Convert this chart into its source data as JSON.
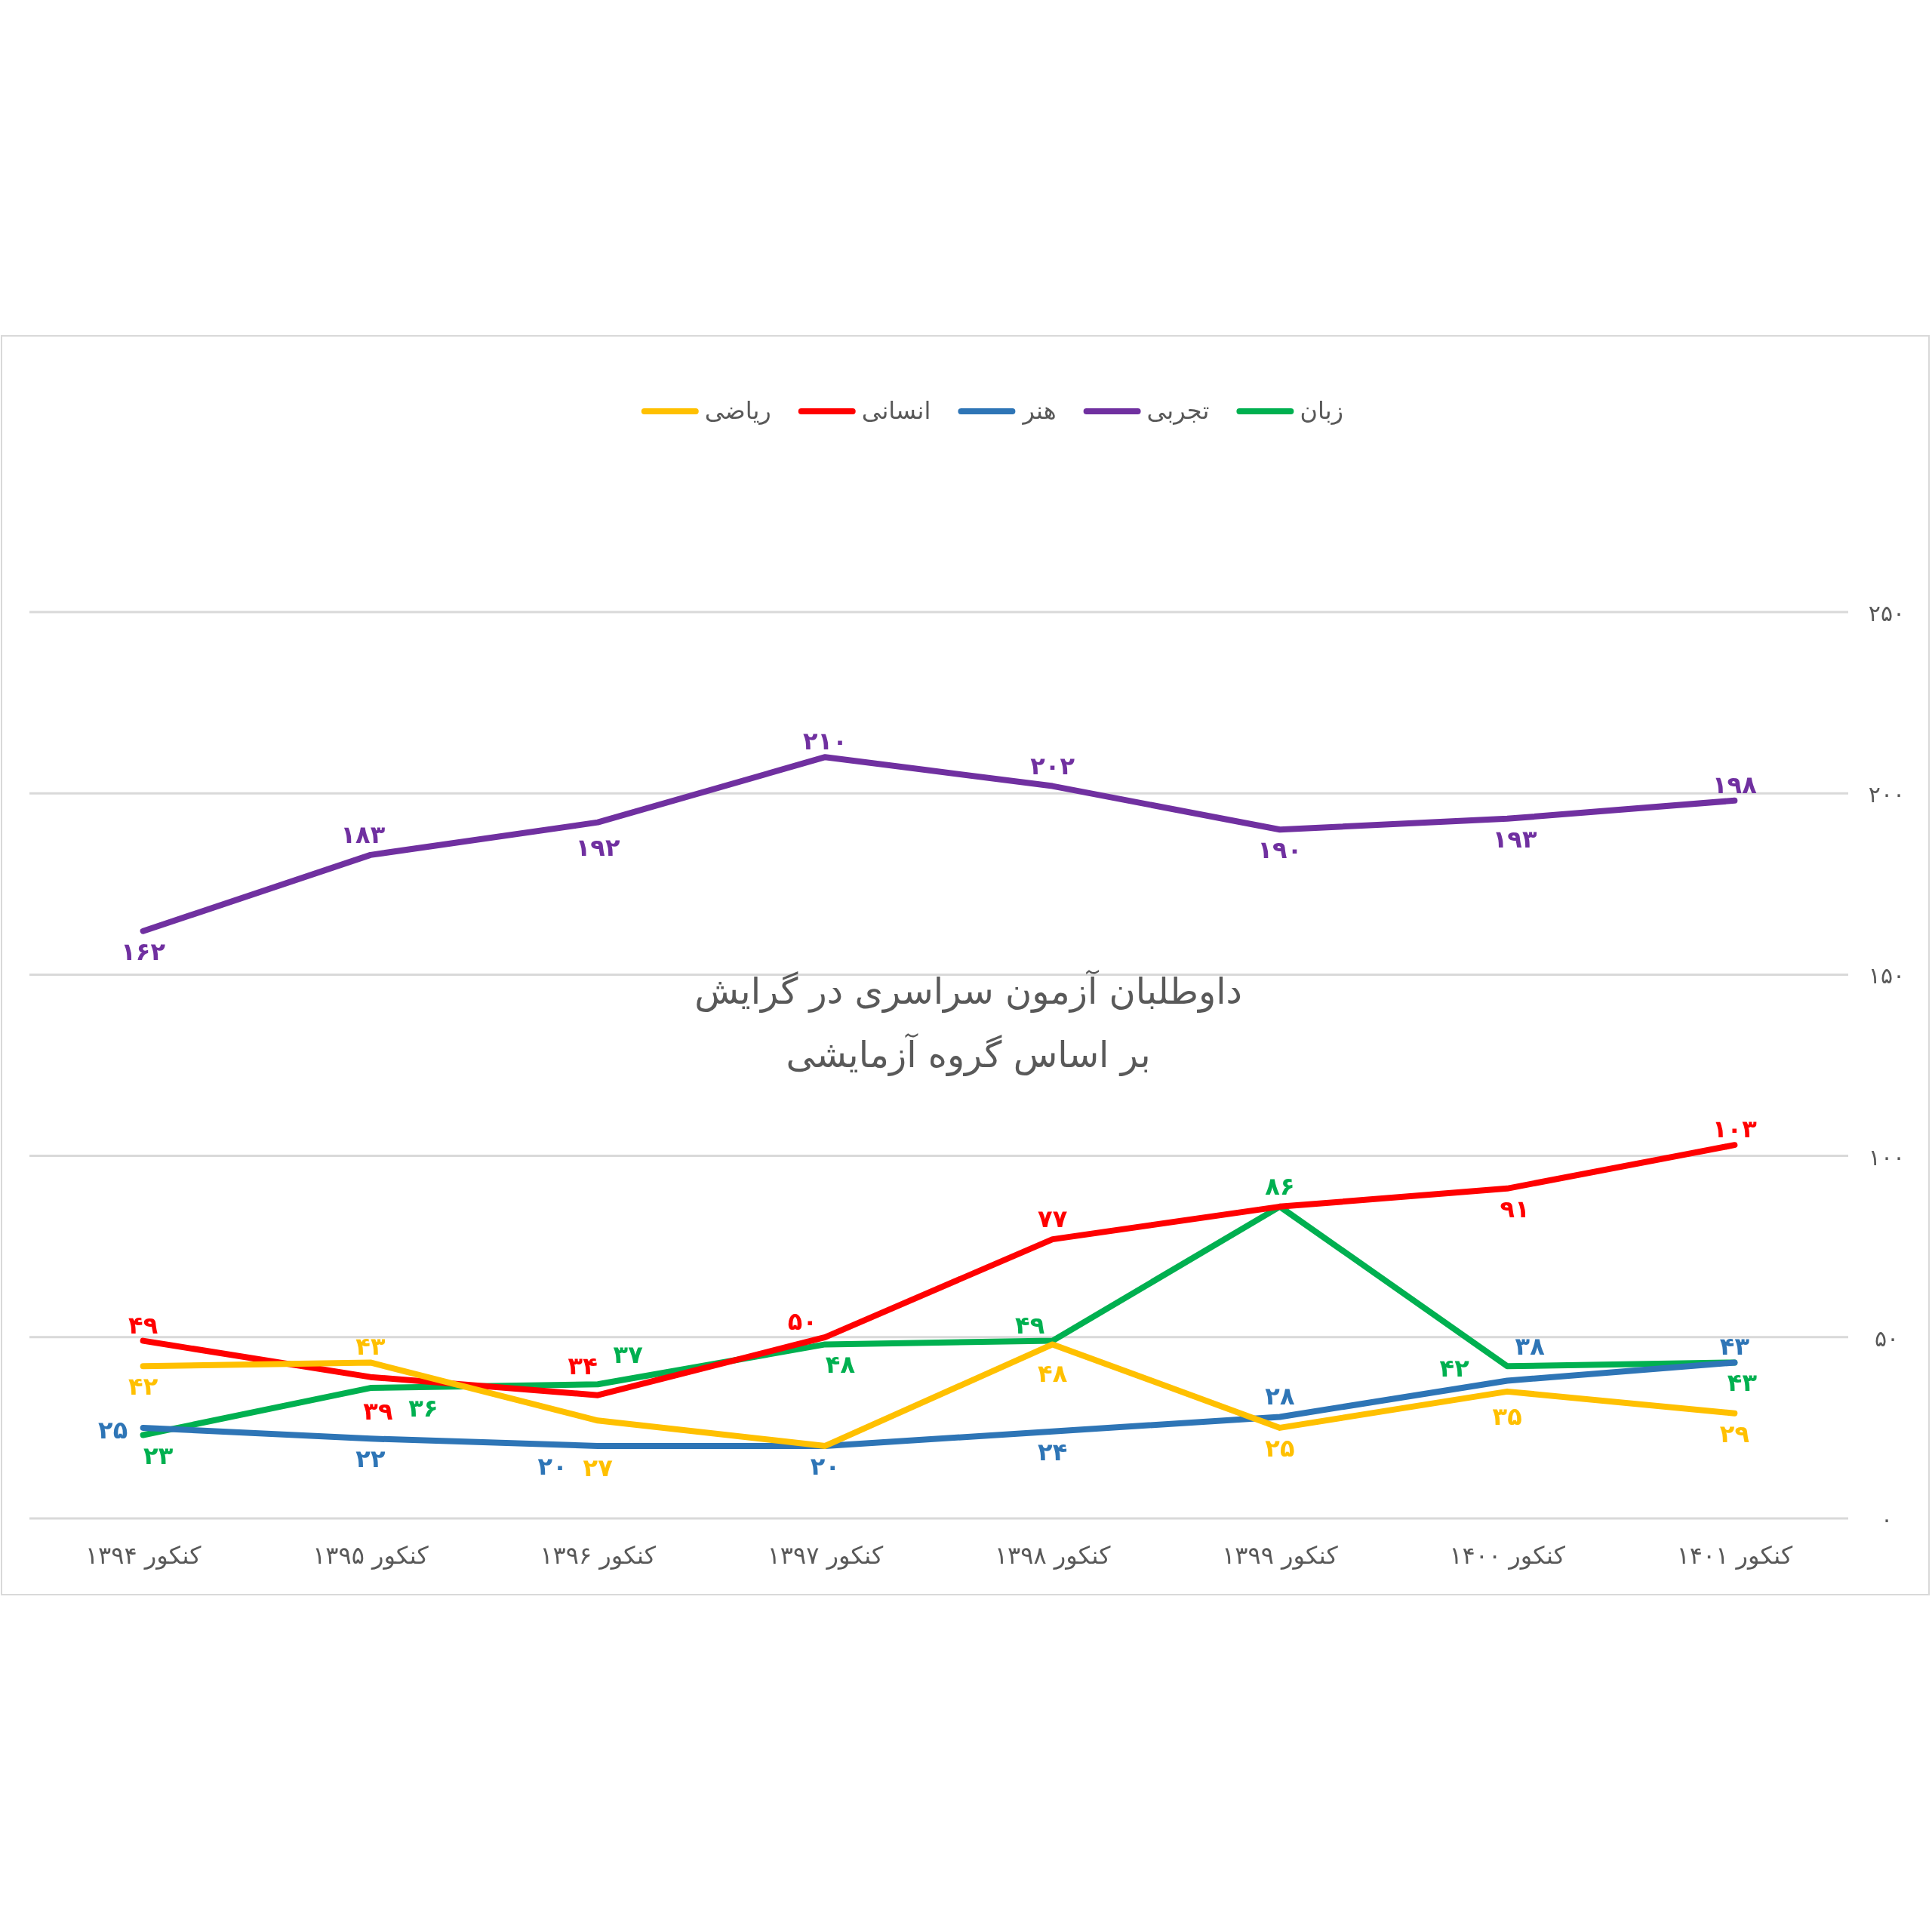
{
  "chart_data": {
    "type": "line",
    "title": "داوطلبان آزمون سراسری در گرایش\nبر اساس گروه آزمایشی",
    "categories": [
      "کنکور ۱۳۹۴",
      "کنکور ۱۳۹۵",
      "کنکور ۱۳۹۶",
      "کنکور ۱۳۹۷",
      "کنکور ۱۳۹۸",
      "کنکور ۱۳۹۹",
      "کنکور ۱۴۰۰",
      "کنکور ۱۴۰۱"
    ],
    "series": [
      {
        "name": "زبان",
        "color": "#00b050",
        "values": [
          23,
          36,
          37,
          48,
          49,
          86,
          42,
          43
        ],
        "value_labels": [
          "۲۳",
          "۳۶",
          "۳۷",
          "۴۸",
          "۴۹",
          "۸۶",
          "۴۲",
          "۴۳"
        ]
      },
      {
        "name": "تجربی",
        "color": "#7030a0",
        "values": [
          162,
          183,
          192,
          210,
          202,
          190,
          193,
          198
        ],
        "value_labels": [
          "۱۶۲",
          "۱۸۳",
          "۱۹۲",
          "۲۱۰",
          "۲۰۲",
          "۱۹۰",
          "۱۹۳",
          "۱۹۸"
        ]
      },
      {
        "name": "هنر",
        "color": "#2e75b6",
        "values": [
          25,
          22,
          20,
          20,
          24,
          28,
          38,
          43
        ],
        "value_labels": [
          "۲۵",
          "۲۲",
          "۲۰",
          "۲۰",
          "۲۴",
          "۲۸",
          "۳۸",
          "۴۳"
        ]
      },
      {
        "name": "انسانی",
        "color": "#ff0000",
        "values": [
          49,
          39,
          34,
          50,
          77,
          86,
          91,
          103
        ],
        "value_labels": [
          "۴۹",
          "۳۹",
          "۳۴",
          "۵۰",
          "۷۷",
          null,
          "۹۱",
          "۱۰۳"
        ]
      },
      {
        "name": "ریاضی",
        "color": "#ffc000",
        "values": [
          42,
          43,
          27,
          20,
          48,
          25,
          35,
          29
        ],
        "value_labels": [
          "۴۲",
          "۴۳",
          "۲۷",
          null,
          "۴۸",
          "۲۵",
          "۳۵",
          "۲۹"
        ]
      }
    ],
    "ylim": [
      0,
      250
    ],
    "yticks": [
      {
        "value": 0,
        "label": "۰"
      },
      {
        "value": 50,
        "label": "۵۰"
      },
      {
        "value": 100,
        "label": "۱۰۰"
      },
      {
        "value": 150,
        "label": "۱۵۰"
      },
      {
        "value": 200,
        "label": "۲۰۰"
      },
      {
        "value": 250,
        "label": "۲۵۰"
      }
    ],
    "grid": "y",
    "legend": "top",
    "marker": "none",
    "line_style": "solid"
  }
}
